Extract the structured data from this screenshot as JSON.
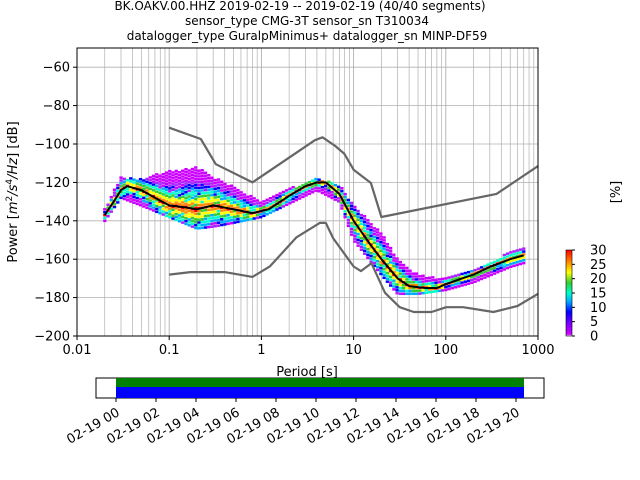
{
  "figure": {
    "title_lines": [
      "BK.OAKV.00.HHZ   2019-02-19 -- 2019-02-19  (40/40 segments)",
      "sensor_type CMG-3T sensor_sn T310034",
      "datalogger_type GuralpMinimus+ datalogger_sn MINP-DF59"
    ]
  },
  "chart_data": [
    {
      "type": "heatmap",
      "subtype": "probabilistic power spectral density",
      "xlabel": "Period [s]",
      "ylabel": "Power [m²/s⁴/Hz] [dB]",
      "xscale": "log",
      "xlim": [
        0.01,
        1000
      ],
      "ylim": [
        -200,
        -50
      ],
      "x_ticks": [
        0.01,
        0.1,
        1,
        10,
        100,
        1000
      ],
      "x_tick_labels": [
        "0.01",
        "0.1",
        "1",
        "10",
        "100",
        "1000"
      ],
      "y_ticks": [
        -200,
        -180,
        -160,
        -140,
        -120,
        -100,
        -80,
        -60
      ],
      "y_tick_labels": [
        "−200",
        "−180",
        "−160",
        "−140",
        "−120",
        "−100",
        "−80",
        "−60"
      ],
      "grid": true,
      "colorbar": {
        "label": "[%]",
        "range": [
          0,
          30
        ],
        "ticks": [
          "0",
          "5",
          "10",
          "15",
          "20",
          "25",
          "30"
        ],
        "colormap": "pqlx"
      },
      "series": [
        {
          "name": "",
          "style": "gray reference curve (high noise model)",
          "color": "#666666",
          "x": [
            0.1,
            0.22,
            0.32,
            0.8,
            3.8,
            4.6,
            6.3,
            7.9,
            10,
            15.4,
            20,
            354.8,
            1000
          ],
          "y": [
            -91.5,
            -97.4,
            -110.5,
            -120.0,
            -98.0,
            -96.5,
            -101.0,
            -105.0,
            -113.4,
            -120.3,
            -138.0,
            -126.0,
            -111.5
          ]
        },
        {
          "name": "",
          "style": "gray reference curve (low noise model)",
          "color": "#666666",
          "x": [
            0.1,
            0.17,
            0.4,
            0.8,
            1.24,
            2.4,
            4.3,
            5.0,
            6.0,
            10,
            12,
            15.6,
            21.9,
            31.6,
            45,
            70,
            101,
            154,
            328,
            600,
            1000
          ],
          "y": [
            -168,
            -166.7,
            -166.7,
            -169.2,
            -163.7,
            -148.6,
            -141.1,
            -141.1,
            -149.0,
            -163.8,
            -166.2,
            -162.1,
            -177.5,
            -185.0,
            -187.5,
            -187.5,
            -185.0,
            -185.0,
            -187.5,
            -184.4,
            -178.0
          ]
        },
        {
          "name": "",
          "style": "black mean PSD",
          "color": "#000000",
          "x": [
            0.02,
            0.025,
            0.03,
            0.035,
            0.05,
            0.07,
            0.1,
            0.15,
            0.2,
            0.3,
            0.5,
            0.8,
            1.2,
            2,
            3,
            4,
            5,
            7,
            10,
            15,
            20,
            30,
            40,
            60,
            80,
            100,
            150,
            200,
            300,
            500,
            700
          ],
          "y": [
            -137,
            -130,
            -124,
            -122,
            -124,
            -128,
            -132,
            -133,
            -134,
            -132,
            -134,
            -136,
            -134,
            -127,
            -122,
            -120,
            -120,
            -126,
            -140,
            -152,
            -160,
            -170,
            -174,
            -175,
            -175,
            -173,
            -170,
            -168,
            -164,
            -160,
            -158
          ]
        }
      ],
      "heatmap_band": {
        "description": "colored probability band surrounding mean curve, 0-30 %",
        "x": [
          0.02,
          0.03,
          0.05,
          0.1,
          0.2,
          0.3,
          0.5,
          1,
          2,
          4,
          7,
          10,
          20,
          30,
          50,
          100,
          200,
          500,
          700
        ],
        "upper": [
          -134,
          -117,
          -118,
          -114,
          -112,
          -117,
          -122,
          -130,
          -123,
          -118,
          -121,
          -132,
          -146,
          -160,
          -168,
          -170,
          -166,
          -156,
          -154
        ],
        "lower": [
          -140,
          -128,
          -132,
          -138,
          -144,
          -143,
          -141,
          -138,
          -131,
          -124,
          -130,
          -150,
          -168,
          -178,
          -178,
          -176,
          -172,
          -164,
          -162
        ]
      }
    },
    {
      "type": "timeline",
      "description": "data availability bar",
      "x_tick_labels": [
        "02-19 00",
        "02-19 02",
        "02-19 04",
        "02-19 06",
        "02-19 08",
        "02-19 10",
        "02-19 12",
        "02-19 14",
        "02-19 16",
        "02-19 18",
        "02-19 20"
      ],
      "bars": [
        {
          "name": "",
          "color": "#008000",
          "start_hour": 0.0,
          "end_hour": 20.4
        },
        {
          "name": "",
          "color": "#0000ff",
          "start_hour": 0.0,
          "end_hour": 20.4
        }
      ],
      "xlim_hours": [
        -1.0,
        21.4
      ]
    }
  ]
}
